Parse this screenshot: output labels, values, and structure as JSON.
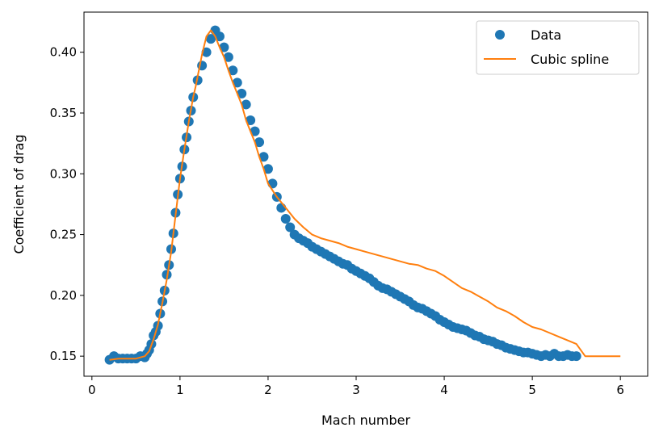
{
  "chart_data": {
    "type": "line",
    "xlabel": "Mach number",
    "ylabel": "Coefficient of drag",
    "xlim": [
      -0.09,
      6.31
    ],
    "ylim": [
      0.1335,
      0.433
    ],
    "xticks": [
      0,
      1,
      2,
      3,
      4,
      5,
      6
    ],
    "xtick_labels": [
      "0",
      "1",
      "2",
      "3",
      "4",
      "5",
      "6"
    ],
    "yticks": [
      0.15,
      0.2,
      0.25,
      0.3,
      0.35,
      0.4
    ],
    "ytick_labels": [
      "0.15",
      "0.20",
      "0.25",
      "0.30",
      "0.35",
      "0.40"
    ],
    "grid": false,
    "legend_position": "top-right",
    "series": [
      {
        "name": "Data",
        "kind": "scatter",
        "color": "#1f77b4",
        "x": [
          0.2,
          0.25,
          0.3,
          0.35,
          0.4,
          0.45,
          0.5,
          0.55,
          0.6,
          0.625,
          0.65,
          0.675,
          0.7,
          0.725,
          0.75,
          0.775,
          0.8,
          0.825,
          0.85,
          0.875,
          0.9,
          0.925,
          0.95,
          0.975,
          1.0,
          1.025,
          1.05,
          1.075,
          1.1,
          1.125,
          1.15,
          1.2,
          1.25,
          1.3,
          1.35,
          1.4,
          1.45,
          1.5,
          1.55,
          1.6,
          1.65,
          1.7,
          1.75,
          1.8,
          1.85,
          1.9,
          1.95,
          2.0,
          2.05,
          2.1,
          2.15,
          2.2,
          2.25,
          2.3,
          2.35,
          2.4,
          2.45,
          2.5,
          2.55,
          2.6,
          2.65,
          2.7,
          2.75,
          2.8,
          2.85,
          2.9,
          2.95,
          3.0,
          3.05,
          3.1,
          3.15,
          3.2,
          3.25,
          3.3,
          3.35,
          3.4,
          3.45,
          3.5,
          3.55,
          3.6,
          3.65,
          3.7,
          3.75,
          3.8,
          3.85,
          3.9,
          3.95,
          4.0,
          4.05,
          4.1,
          4.15,
          4.2,
          4.25,
          4.3,
          4.35,
          4.4,
          4.45,
          4.5,
          4.55,
          4.6,
          4.65,
          4.7,
          4.75,
          4.8,
          4.85,
          4.9,
          4.95,
          5.0,
          5.05,
          5.1,
          5.15,
          5.2,
          5.25,
          5.3,
          5.35,
          5.4,
          5.45,
          5.5
        ],
        "y": [
          0.147,
          0.15,
          0.148,
          0.148,
          0.148,
          0.148,
          0.148,
          0.15,
          0.149,
          0.152,
          0.155,
          0.16,
          0.167,
          0.17,
          0.175,
          0.185,
          0.195,
          0.204,
          0.217,
          0.225,
          0.238,
          0.251,
          0.268,
          0.283,
          0.296,
          0.306,
          0.32,
          0.33,
          0.343,
          0.352,
          0.363,
          0.377,
          0.389,
          0.4,
          0.411,
          0.418,
          0.413,
          0.404,
          0.396,
          0.385,
          0.375,
          0.366,
          0.357,
          0.344,
          0.335,
          0.326,
          0.314,
          0.304,
          0.292,
          0.281,
          0.272,
          0.263,
          0.256,
          0.25,
          0.247,
          0.245,
          0.243,
          0.24,
          0.238,
          0.236,
          0.234,
          0.232,
          0.23,
          0.228,
          0.226,
          0.225,
          0.222,
          0.22,
          0.218,
          0.216,
          0.214,
          0.211,
          0.208,
          0.206,
          0.205,
          0.203,
          0.201,
          0.199,
          0.197,
          0.195,
          0.192,
          0.19,
          0.189,
          0.187,
          0.185,
          0.183,
          0.18,
          0.178,
          0.176,
          0.174,
          0.173,
          0.172,
          0.171,
          0.169,
          0.167,
          0.166,
          0.164,
          0.163,
          0.162,
          0.16,
          0.159,
          0.157,
          0.156,
          0.155,
          0.154,
          0.153,
          0.153,
          0.152,
          0.151,
          0.15,
          0.151,
          0.15,
          0.152,
          0.15,
          0.15,
          0.151,
          0.15,
          0.15
        ]
      },
      {
        "name": "Cubic spline",
        "kind": "line",
        "color": "#ff7f0e",
        "x": [
          0.2,
          0.3,
          0.4,
          0.5,
          0.55,
          0.6,
          0.65,
          0.7,
          0.75,
          0.8,
          0.85,
          0.9,
          0.95,
          1.0,
          1.05,
          1.1,
          1.15,
          1.175,
          1.2,
          1.25,
          1.3,
          1.35,
          1.4,
          1.45,
          1.5,
          1.55,
          1.6,
          1.65,
          1.7,
          1.75,
          1.8,
          1.85,
          1.9,
          1.95,
          2.0,
          2.1,
          2.2,
          2.3,
          2.4,
          2.5,
          2.6,
          2.7,
          2.8,
          2.9,
          3.0,
          3.1,
          3.2,
          3.3,
          3.4,
          3.5,
          3.6,
          3.7,
          3.8,
          3.9,
          4.0,
          4.1,
          4.2,
          4.3,
          4.4,
          4.5,
          4.6,
          4.7,
          4.8,
          4.9,
          5.0,
          5.1,
          5.2,
          5.3,
          5.4,
          5.5,
          5.6,
          5.8,
          6.0
        ],
        "y": [
          0.147,
          0.148,
          0.148,
          0.148,
          0.149,
          0.15,
          0.154,
          0.164,
          0.176,
          0.194,
          0.213,
          0.236,
          0.266,
          0.296,
          0.32,
          0.343,
          0.363,
          0.371,
          0.38,
          0.398,
          0.413,
          0.418,
          0.413,
          0.404,
          0.396,
          0.385,
          0.375,
          0.366,
          0.357,
          0.344,
          0.335,
          0.326,
          0.314,
          0.304,
          0.292,
          0.281,
          0.272,
          0.263,
          0.256,
          0.25,
          0.247,
          0.245,
          0.243,
          0.24,
          0.238,
          0.236,
          0.234,
          0.232,
          0.23,
          0.228,
          0.226,
          0.225,
          0.222,
          0.22,
          0.216,
          0.211,
          0.206,
          0.203,
          0.199,
          0.195,
          0.19,
          0.187,
          0.183,
          0.178,
          0.174,
          0.172,
          0.169,
          0.166,
          0.163,
          0.16,
          0.15,
          0.15,
          0.15
        ]
      }
    ]
  }
}
